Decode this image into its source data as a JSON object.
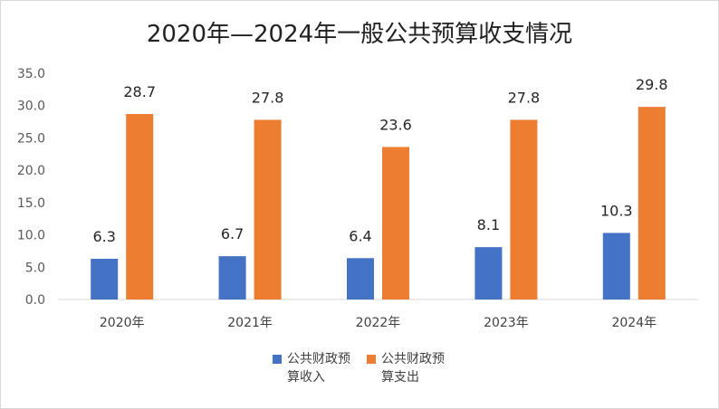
{
  "chart_data": {
    "type": "bar",
    "title": "2020年—2024年一般公共预算收支情况",
    "categories": [
      "2020年",
      "2021年",
      "2022年",
      "2023年",
      "2024年"
    ],
    "series": [
      {
        "name": "公共财政预算收入",
        "color": "#4472c4",
        "values": [
          6.3,
          6.7,
          6.4,
          8.1,
          10.3
        ]
      },
      {
        "name": "公共财政预算支出",
        "color": "#ed7d31",
        "values": [
          28.7,
          27.8,
          23.6,
          27.8,
          29.8
        ]
      }
    ],
    "yticks": [
      "0.0",
      "5.0",
      "10.0",
      "15.0",
      "20.0",
      "25.0",
      "30.0",
      "35.0"
    ],
    "ylim": [
      0,
      35
    ],
    "grid": false,
    "legend_position": "bottom"
  }
}
